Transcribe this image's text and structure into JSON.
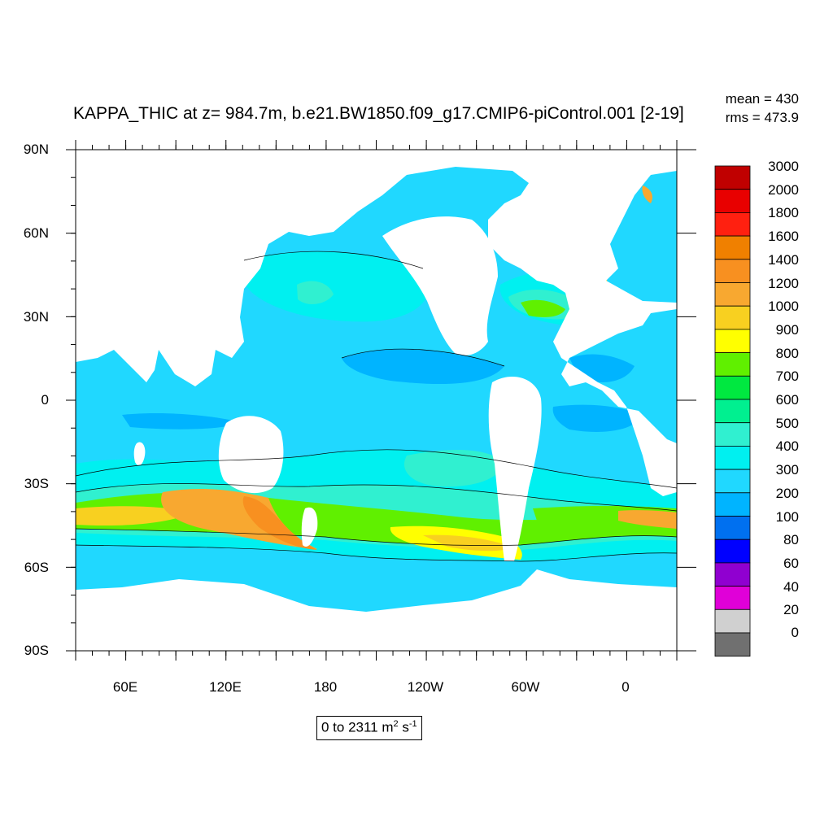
{
  "title": "KAPPA_THIC at z= 984.7m, b.e21.BW1850.f09_g17.CMIP6-piControl.001 [2-19]",
  "stats": {
    "mean": "mean = 430",
    "rms": "rms = 473.9"
  },
  "range_box": {
    "text": "0 to 2311 m",
    "sup1": "2",
    "mid": " s",
    "sup2": "-1"
  },
  "axes": {
    "lat_labels": [
      "90N",
      "60N",
      "30N",
      "0",
      "30S",
      "60S",
      "90S"
    ],
    "lon_labels": [
      "60E",
      "120E",
      "180",
      "120W",
      "60W",
      "0"
    ]
  },
  "colorbar": {
    "labels": [
      "3000",
      "2000",
      "1800",
      "1600",
      "1400",
      "1200",
      "1000",
      "900",
      "800",
      "700",
      "600",
      "500",
      "400",
      "300",
      "200",
      "100",
      "80",
      "60",
      "40",
      "20",
      "0"
    ],
    "colors": [
      "#c00000",
      "#e80000",
      "#ff2010",
      "#f08000",
      "#f89020",
      "#f8a830",
      "#f8d020",
      "#ffff00",
      "#60f000",
      "#00e840",
      "#00f090",
      "#30f0d0",
      "#00f0f0",
      "#20d8ff",
      "#00b4ff",
      "#0070f0",
      "#0000ff",
      "#9000d0",
      "#e000d8",
      "#d0d0d0",
      "#707070"
    ]
  },
  "fields": {
    "ocean_bg": "#20d8ff",
    "land": "#ffffff"
  }
}
